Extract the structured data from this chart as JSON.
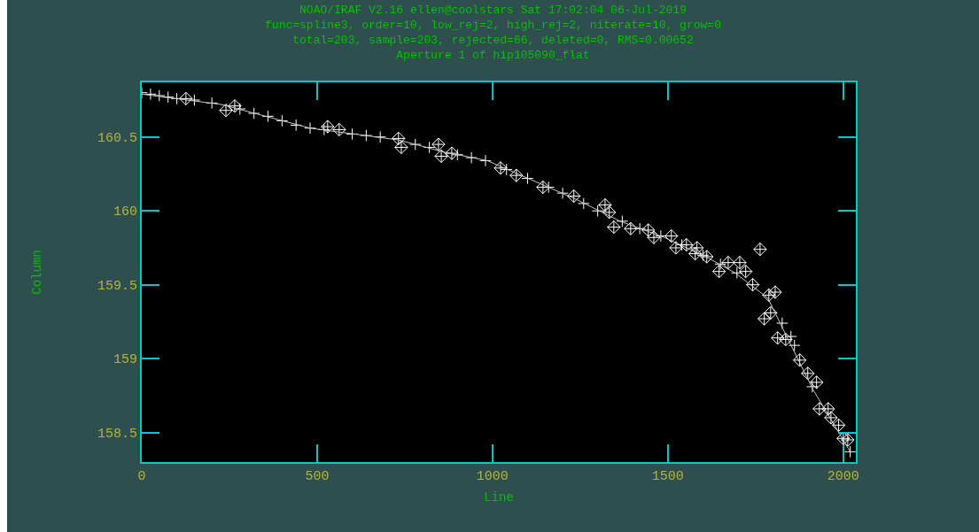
{
  "chart_data": {
    "type": "scatter",
    "title": "NOAO/IRAF V2.16 ellen@coolstars Sat 17:02:04 06-Jul-2019\nfunc=spline3, order=10, low_rej=2, high_rej=2, niterate=10, grow=0\ntotal=203, sample=203, rejected=66, deleted=0, RMS=0.00652\nAperture 1 of hip105090_flat",
    "xlabel": "Line",
    "ylabel": "Column",
    "xlim": [
      0,
      2036
    ],
    "ylim": [
      158.3,
      160.87
    ],
    "xticks": [
      0,
      500,
      1000,
      1500,
      2000
    ],
    "yticks": [
      158.5,
      159,
      159.5,
      160,
      160.5
    ],
    "grid": false,
    "series": [
      {
        "marker": "cross",
        "color": "#ffffff",
        "x": [
          0,
          25,
          50,
          75,
          100,
          150,
          200,
          280,
          320,
          360,
          400,
          440,
          480,
          520,
          600,
          640,
          680,
          780,
          820,
          900,
          940,
          980,
          1040,
          1100,
          1160,
          1200,
          1260,
          1300,
          1370,
          1420,
          1480,
          1540,
          1600,
          1650,
          1697,
          1826,
          1851,
          1861,
          1912,
          2020
        ],
        "values": [
          160.8,
          160.79,
          160.78,
          160.77,
          160.76,
          160.75,
          160.73,
          160.69,
          160.66,
          160.64,
          160.61,
          160.58,
          160.56,
          160.55,
          160.52,
          160.51,
          160.5,
          160.45,
          160.43,
          160.38,
          160.36,
          160.34,
          160.28,
          160.22,
          160.16,
          160.12,
          160.05,
          160.0,
          159.93,
          159.88,
          159.83,
          159.77,
          159.7,
          159.64,
          159.58,
          159.24,
          159.15,
          159.09,
          158.81,
          158.37
        ]
      },
      {
        "marker": "diamond",
        "color": "#ffffff",
        "x": [
          126,
          240,
          265,
          530,
          563,
          732,
          740,
          846,
          854,
          884,
          1023,
          1068,
          1144,
          1232,
          1321,
          1333,
          1346,
          1394,
          1444,
          1460,
          1510,
          1523,
          1553,
          1583,
          1578,
          1611,
          1646,
          1672,
          1705,
          1722,
          1763,
          1742,
          1788,
          1806,
          1775,
          1793,
          1813,
          1836,
          1876,
          1899,
          1924,
          1932,
          1957,
          1965,
          1987,
          2000,
          2013
        ],
        "values": [
          160.76,
          160.68,
          160.71,
          160.57,
          160.55,
          160.49,
          160.43,
          160.45,
          160.37,
          160.39,
          160.29,
          160.24,
          160.16,
          160.1,
          160.04,
          159.99,
          159.89,
          159.88,
          159.87,
          159.82,
          159.83,
          159.75,
          159.77,
          159.75,
          159.71,
          159.69,
          159.59,
          159.65,
          159.65,
          159.59,
          159.74,
          159.5,
          159.43,
          159.45,
          159.27,
          159.31,
          159.14,
          159.13,
          158.99,
          158.9,
          158.84,
          158.66,
          158.66,
          158.6,
          158.55,
          158.46,
          158.45
        ]
      },
      {
        "type": "line",
        "marker": "none",
        "color": "#c8c8c8",
        "x": [
          0,
          227,
          480,
          732,
          859,
          985,
          1111,
          1237,
          1364,
          1490,
          1616,
          1692,
          1785,
          1843,
          1914,
          1962,
          2020
        ],
        "values": [
          160.79,
          160.72,
          160.56,
          160.48,
          160.4,
          160.34,
          160.21,
          160.08,
          159.93,
          159.82,
          159.68,
          159.58,
          159.41,
          159.13,
          158.79,
          158.6,
          158.37
        ]
      }
    ]
  }
}
